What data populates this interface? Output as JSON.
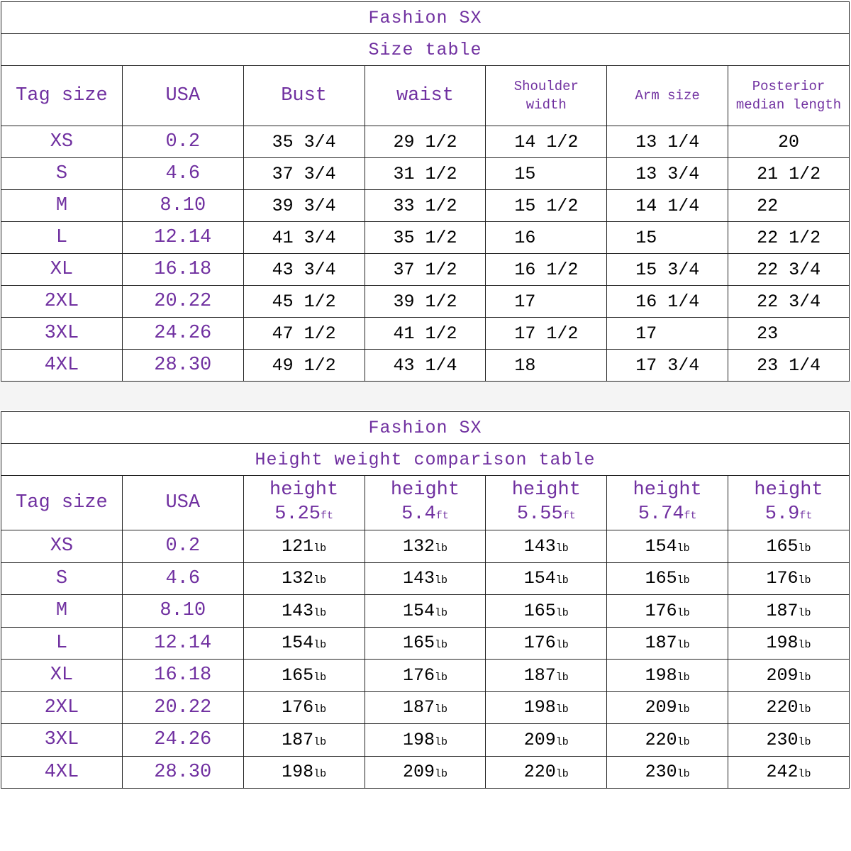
{
  "tables": [
    {
      "title": "Fashion SX",
      "subtitle": "Size table",
      "header": [
        "Tag size",
        "USA",
        "Bust",
        "waist",
        "Shoulder width",
        "Arm size",
        "Posterior median length"
      ],
      "rows": [
        [
          "XS",
          "0.2",
          "35 3/4",
          "29 1/2",
          "14 1/2",
          "13 1/4",
          "20"
        ],
        [
          "S",
          "4.6",
          "37 3/4",
          "31 1/2",
          "15",
          "13 3/4",
          "21 1/2"
        ],
        [
          "M",
          "8.10",
          "39 3/4",
          "33 1/2",
          "15 1/2",
          "14 1/4",
          "22"
        ],
        [
          "L",
          "12.14",
          "41 3/4",
          "35 1/2",
          "16",
          "15",
          "22 1/2"
        ],
        [
          "XL",
          "16.18",
          "43 3/4",
          "37 1/2",
          "16 1/2",
          "15 3/4",
          "22 3/4"
        ],
        [
          "2XL",
          "20.22",
          "45 1/2",
          "39 1/2",
          "17",
          "16 1/4",
          "22 3/4"
        ],
        [
          "3XL",
          "24.26",
          "47 1/2",
          "41 1/2",
          "17 1/2",
          "17",
          "23"
        ],
        [
          "4XL",
          "28.30",
          "49 1/2",
          "43 1/4",
          "18",
          "17 3/4",
          "23 1/4"
        ]
      ]
    },
    {
      "title": "Fashion SX",
      "subtitle": "Height weight comparison table",
      "header": [
        "Tag size",
        "USA",
        {
          "label": "height",
          "value": "5.25",
          "unit": "ft"
        },
        {
          "label": "height",
          "value": "5.4",
          "unit": "ft"
        },
        {
          "label": "height",
          "value": "5.55",
          "unit": "ft"
        },
        {
          "label": "height",
          "value": "5.74",
          "unit": "ft"
        },
        {
          "label": "height",
          "value": "5.9",
          "unit": "ft"
        }
      ],
      "rows": [
        [
          "XS",
          "0.2",
          {
            "value": "121",
            "unit": "lb"
          },
          {
            "value": "132",
            "unit": "lb"
          },
          {
            "value": "143",
            "unit": "lb"
          },
          {
            "value": "154",
            "unit": "lb"
          },
          {
            "value": "165",
            "unit": "lb"
          }
        ],
        [
          "S",
          "4.6",
          {
            "value": "132",
            "unit": "lb"
          },
          {
            "value": "143",
            "unit": "lb"
          },
          {
            "value": "154",
            "unit": "lb"
          },
          {
            "value": "165",
            "unit": "lb"
          },
          {
            "value": "176",
            "unit": "lb"
          }
        ],
        [
          "M",
          "8.10",
          {
            "value": "143",
            "unit": "lb"
          },
          {
            "value": "154",
            "unit": "lb"
          },
          {
            "value": "165",
            "unit": "lb"
          },
          {
            "value": "176",
            "unit": "lb"
          },
          {
            "value": "187",
            "unit": "lb"
          }
        ],
        [
          "L",
          "12.14",
          {
            "value": "154",
            "unit": "lb"
          },
          {
            "value": "165",
            "unit": "lb"
          },
          {
            "value": "176",
            "unit": "lb"
          },
          {
            "value": "187",
            "unit": "lb"
          },
          {
            "value": "198",
            "unit": "lb"
          }
        ],
        [
          "XL",
          "16.18",
          {
            "value": "165",
            "unit": "lb"
          },
          {
            "value": "176",
            "unit": "lb"
          },
          {
            "value": "187",
            "unit": "lb"
          },
          {
            "value": "198",
            "unit": "lb"
          },
          {
            "value": "209",
            "unit": "lb"
          }
        ],
        [
          "2XL",
          "20.22",
          {
            "value": "176",
            "unit": "lb"
          },
          {
            "value": "187",
            "unit": "lb"
          },
          {
            "value": "198",
            "unit": "lb"
          },
          {
            "value": "209",
            "unit": "lb"
          },
          {
            "value": "220",
            "unit": "lb"
          }
        ],
        [
          "3XL",
          "24.26",
          {
            "value": "187",
            "unit": "lb"
          },
          {
            "value": "198",
            "unit": "lb"
          },
          {
            "value": "209",
            "unit": "lb"
          },
          {
            "value": "220",
            "unit": "lb"
          },
          {
            "value": "230",
            "unit": "lb"
          }
        ],
        [
          "4XL",
          "28.30",
          {
            "value": "198",
            "unit": "lb"
          },
          {
            "value": "209",
            "unit": "lb"
          },
          {
            "value": "220",
            "unit": "lb"
          },
          {
            "value": "230",
            "unit": "lb"
          },
          {
            "value": "242",
            "unit": "lb"
          }
        ]
      ]
    }
  ]
}
